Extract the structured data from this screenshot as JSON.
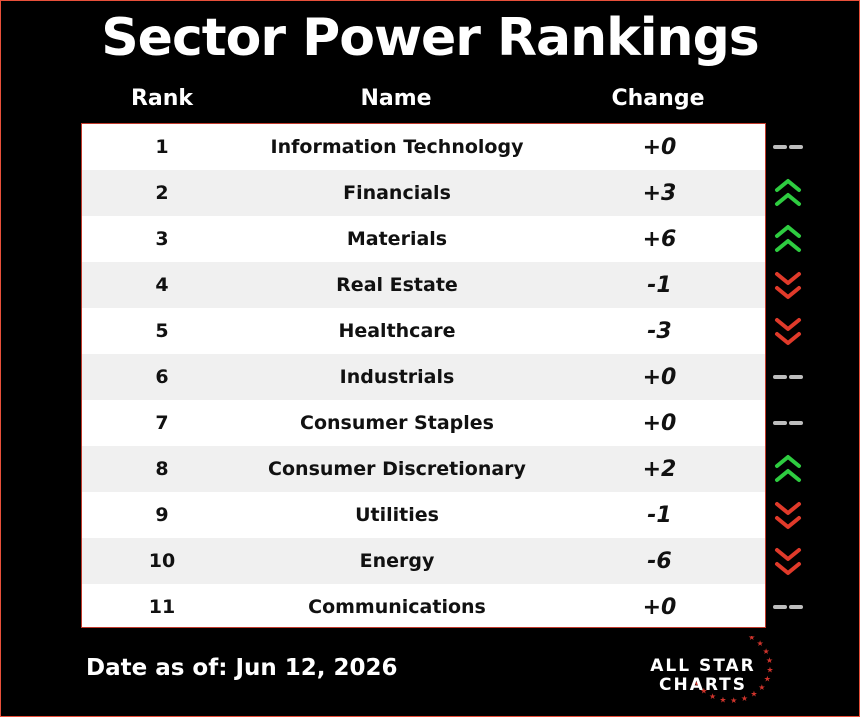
{
  "title": "Sector Power Rankings",
  "headers": {
    "rank": "Rank",
    "name": "Name",
    "change": "Change"
  },
  "rows": [
    {
      "rank": "1",
      "name": "Information Technology",
      "change": "+0",
      "trend": "flat"
    },
    {
      "rank": "2",
      "name": "Financials",
      "change": "+3",
      "trend": "up"
    },
    {
      "rank": "3",
      "name": "Materials",
      "change": "+6",
      "trend": "up"
    },
    {
      "rank": "4",
      "name": "Real Estate",
      "change": "-1",
      "trend": "down"
    },
    {
      "rank": "5",
      "name": "Healthcare",
      "change": "-3",
      "trend": "down"
    },
    {
      "rank": "6",
      "name": "Industrials",
      "change": "+0",
      "trend": "flat"
    },
    {
      "rank": "7",
      "name": "Consumer Staples",
      "change": "+0",
      "trend": "flat"
    },
    {
      "rank": "8",
      "name": "Consumer Discretionary",
      "change": "+2",
      "trend": "up"
    },
    {
      "rank": "9",
      "name": "Utilities",
      "change": "-1",
      "trend": "down"
    },
    {
      "rank": "10",
      "name": "Energy",
      "change": "-6",
      "trend": "down"
    },
    {
      "rank": "11",
      "name": "Communications",
      "change": "+0",
      "trend": "flat"
    }
  ],
  "footer": {
    "date": "Date as of: Jun 12, 2026"
  },
  "logo": {
    "line1": "ALL STAR",
    "line2": "CHARTS"
  },
  "colors": {
    "up": "#2ecc40",
    "down": "#e03a2a",
    "flat": "#bdbdbd",
    "border": "#e8503a"
  }
}
